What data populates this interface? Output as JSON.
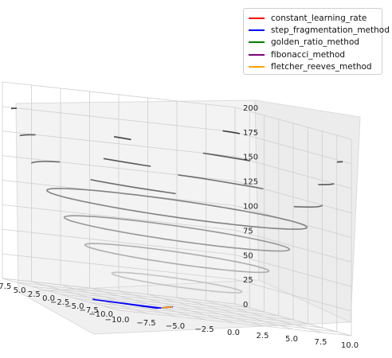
{
  "chart_data": {
    "type": "3d_surface_contour_with_paths",
    "x_ticks": [
      "−10.0",
      "−7.5",
      "−5.0",
      "−2.5",
      "0.0",
      "2.5",
      "5.0",
      "7.5",
      "10.0"
    ],
    "y_ticks": [
      "−10.0",
      "−7.5",
      "−5.0",
      "−2.5",
      "0.0",
      "2.5",
      "5.0",
      "7.5",
      "10.0"
    ],
    "z_ticks": [
      "0",
      "25",
      "50",
      "75",
      "100",
      "125",
      "150",
      "175",
      "200"
    ],
    "xlim": [
      -10,
      10
    ],
    "ylim": [
      -10,
      10
    ],
    "zlim": [
      0,
      200
    ],
    "grid": true,
    "legend_position": "top-right",
    "contour_levels": [
      25,
      50,
      75,
      100,
      125,
      150,
      175,
      200
    ],
    "series": [
      {
        "name": "constant_learning_rate",
        "color": "#ff0000",
        "points": [
          [
            -2.8,
            -2.9,
            0
          ],
          [
            -2.0,
            -2.0,
            0
          ],
          [
            -1.5,
            -1.2,
            0
          ],
          [
            -0.9,
            -0.7,
            0
          ],
          [
            -0.5,
            -0.2,
            0
          ]
        ]
      },
      {
        "name": "step_fragmentation_method",
        "color": "#0000ff",
        "points": [
          [
            -2.8,
            -2.9,
            0
          ],
          [
            -8.0,
            -1.5,
            0
          ],
          [
            -3.5,
            -3.5,
            0
          ],
          [
            -0.5,
            -0.3,
            0
          ]
        ]
      },
      {
        "name": "golden_ratio_method",
        "color": "#008000",
        "points": [
          [
            -2.8,
            -2.9,
            0
          ],
          [
            -0.5,
            -0.2,
            0
          ]
        ]
      },
      {
        "name": "fibonacci_method",
        "color": "#800080",
        "points": [
          [
            -2.8,
            -2.9,
            0
          ],
          [
            -0.5,
            -0.2,
            0
          ]
        ]
      },
      {
        "name": "fletcher_reeves_method",
        "color": "#ffa500",
        "points": [
          [
            -2.8,
            -2.9,
            0
          ],
          [
            -0.6,
            -0.3,
            0
          ],
          [
            -0.5,
            -0.2,
            0
          ]
        ]
      }
    ]
  }
}
